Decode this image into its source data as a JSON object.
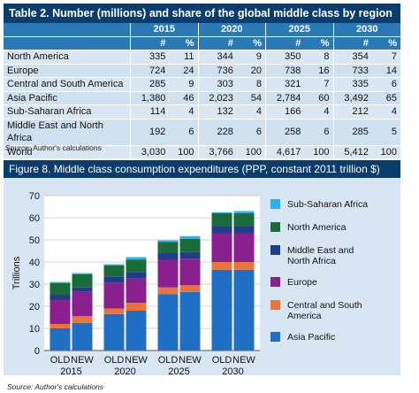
{
  "table": {
    "title": "Table 2. Number (millions) and share of the global middle class by region",
    "years": [
      "2015",
      "2020",
      "2025",
      "2030"
    ],
    "col_hash": "#",
    "col_pct": "%",
    "rows": [
      {
        "region": "North America",
        "v": [
          "335",
          "11",
          "344",
          "9",
          "350",
          "8",
          "354",
          "7"
        ]
      },
      {
        "region": "Europe",
        "v": [
          "724",
          "24",
          "736",
          "20",
          "738",
          "16",
          "733",
          "14"
        ]
      },
      {
        "region": "Central and South America",
        "v": [
          "285",
          "9",
          "303",
          "8",
          "321",
          "7",
          "335",
          "6"
        ]
      },
      {
        "region": "Asia Pacific",
        "v": [
          "1,380",
          "46",
          "2,023",
          "54",
          "2,784",
          "60",
          "3,492",
          "65"
        ]
      },
      {
        "region": "Sub-Saharan Africa",
        "v": [
          "114",
          "4",
          "132",
          "4",
          "166",
          "4",
          "212",
          "4"
        ]
      },
      {
        "region": "Middle East and North Africa",
        "v": [
          "192",
          "6",
          "228",
          "6",
          "258",
          "6",
          "285",
          "5"
        ]
      },
      {
        "region": "World",
        "v": [
          "3,030",
          "100",
          "3,766",
          "100",
          "4,617",
          "100",
          "5,412",
          "100"
        ]
      }
    ],
    "source": "Source: Author's calculations"
  },
  "figure": {
    "title": "Figure 8.  Middle class consumption expenditures (PPP, constant 2011 trillion $)",
    "source": "Source: Author's calculations"
  },
  "chart_data": {
    "type": "bar",
    "stacked": true,
    "ylabel": "Trillions",
    "ylim": [
      0,
      70
    ],
    "yticks": [
      0,
      10,
      20,
      30,
      40,
      50,
      60,
      70
    ],
    "grid": true,
    "legend_position": "right",
    "groups": [
      "2015",
      "2020",
      "2025",
      "2030"
    ],
    "bar_labels": [
      "OLD",
      "NEW"
    ],
    "bars": [
      {
        "group": "2015",
        "label": "OLD"
      },
      {
        "group": "2015",
        "label": "NEW"
      },
      {
        "group": "2020",
        "label": "OLD"
      },
      {
        "group": "2020",
        "label": "NEW"
      },
      {
        "group": "2025",
        "label": "OLD"
      },
      {
        "group": "2025",
        "label": "NEW"
      },
      {
        "group": "2030",
        "label": "OLD"
      },
      {
        "group": "2030",
        "label": "NEW"
      }
    ],
    "series": [
      {
        "name": "Asia Pacific",
        "color": "#1f6fc5",
        "values": [
          10,
          12.5,
          16.5,
          18,
          25.5,
          26.5,
          36.5,
          36.5
        ]
      },
      {
        "name": "Central and South America",
        "color": "#e8743b",
        "values": [
          2,
          3,
          2.5,
          3.5,
          3,
          3,
          3.5,
          3.5
        ]
      },
      {
        "name": "Europe",
        "color": "#8a1f8f",
        "values": [
          11,
          11,
          11.5,
          11,
          12.5,
          12,
          13,
          13
        ]
      },
      {
        "name": "Middle East and North Africa",
        "color": "#1f3d8a",
        "values": [
          2,
          2,
          3,
          3,
          3,
          3,
          3,
          3
        ]
      },
      {
        "name": "North America",
        "color": "#1a6a3a",
        "values": [
          5.5,
          6,
          5,
          5.5,
          5,
          6,
          6,
          6
        ]
      },
      {
        "name": "Sub-Saharan Africa",
        "color": "#29b1e8",
        "values": [
          0.5,
          0.5,
          0.5,
          1.2,
          0.8,
          1.2,
          0.5,
          1.0
        ]
      }
    ]
  }
}
